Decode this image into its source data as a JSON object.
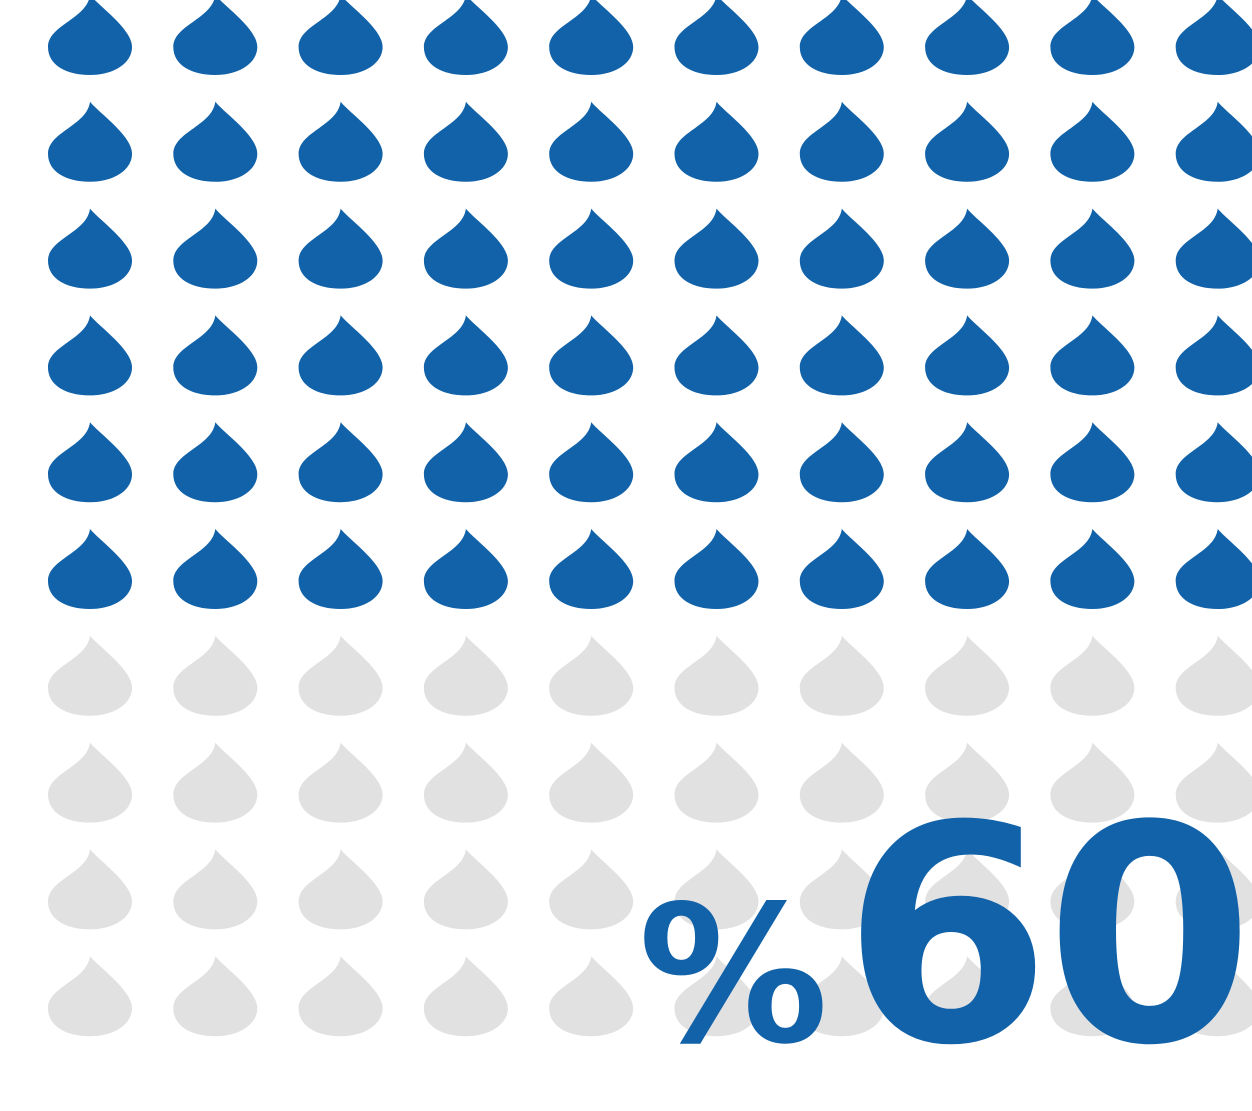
{
  "chart_data": {
    "type": "pictogram",
    "icon": "water-drop-icon",
    "rows": 10,
    "columns": 10,
    "total_icons": 100,
    "filled_icons": 60,
    "value_percent": 60,
    "label_number": "60",
    "label_symbol": "%",
    "colors": {
      "filled": "#1162a9",
      "empty": "#e2e1e2",
      "label": "#1162a9"
    }
  }
}
